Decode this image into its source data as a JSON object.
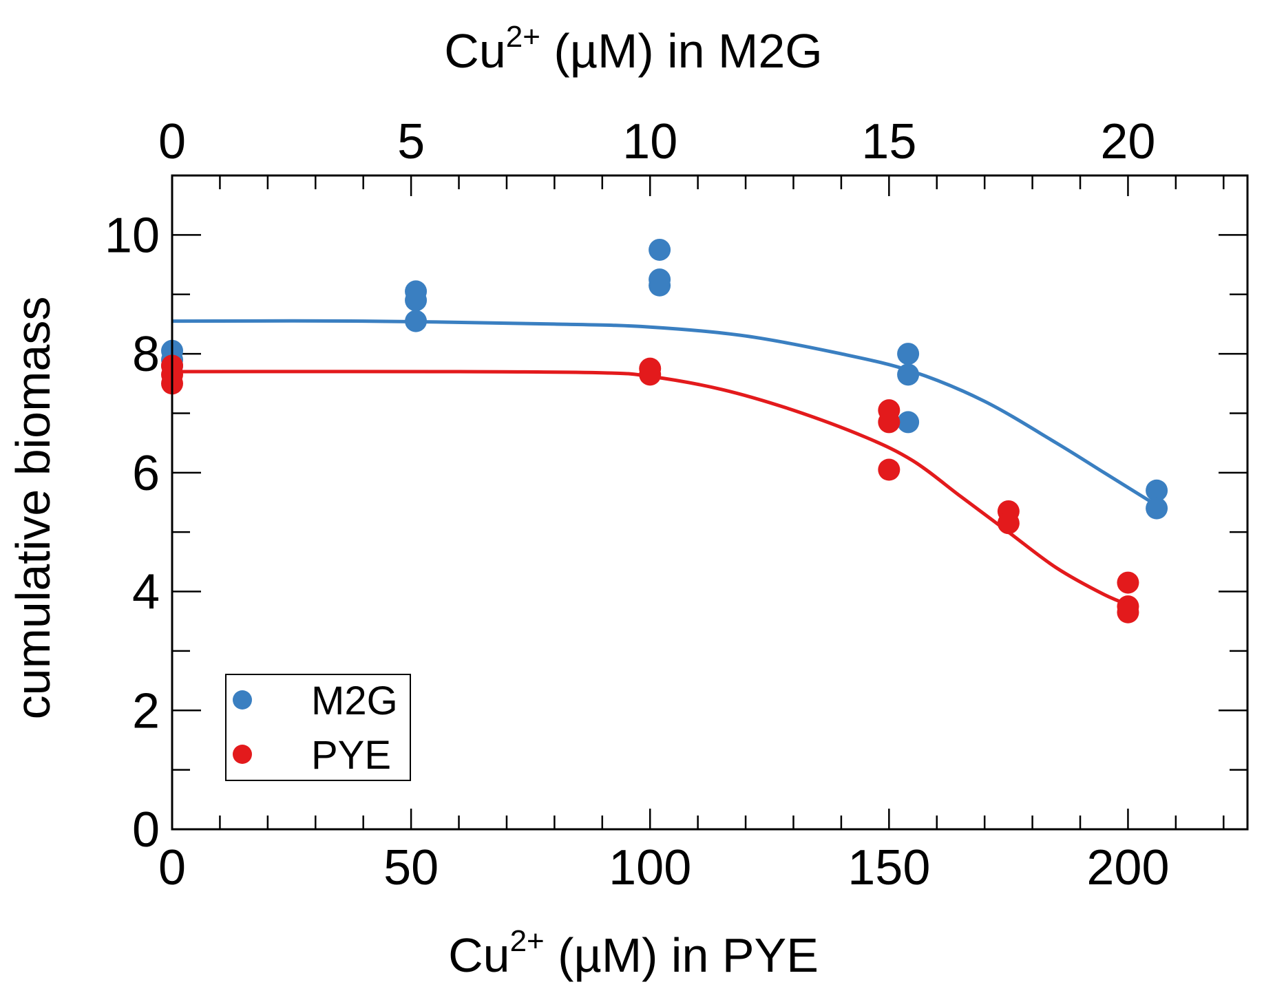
{
  "chart_data": {
    "type": "scatter",
    "x_axis_bottom": {
      "label_base": "Cu",
      "label_sup": "2+",
      "label_rest": " (µM) in PYE",
      "range": [
        0,
        225
      ],
      "major_ticks": [
        0,
        50,
        100,
        150,
        200
      ],
      "minor_step": 10
    },
    "x_axis_top": {
      "label_base": "Cu",
      "label_sup": "2+",
      "label_rest": " (µM) in M2G",
      "range": [
        0,
        22.5
      ],
      "major_ticks": [
        0,
        5,
        10,
        15,
        20
      ],
      "minor_step": 1
    },
    "y_axis": {
      "label": "cumulative biomass",
      "range": [
        0,
        11
      ],
      "major_ticks": [
        0,
        2,
        4,
        6,
        8,
        10
      ],
      "minor_step": 1
    },
    "legend": {
      "placement": "bottom-left",
      "entries": [
        {
          "name": "M2G",
          "color": "#3a7fc1"
        },
        {
          "name": "PYE",
          "color": "#e31a1c"
        }
      ]
    },
    "series": [
      {
        "name": "M2G",
        "color": "#3a7fc1",
        "x_axis": "top",
        "points": [
          [
            0,
            8.05
          ],
          [
            0,
            7.9
          ],
          [
            0,
            7.8
          ],
          [
            5.1,
            9.05
          ],
          [
            5.1,
            8.9
          ],
          [
            5.1,
            8.55
          ],
          [
            10.2,
            9.75
          ],
          [
            10.2,
            9.25
          ],
          [
            10.2,
            9.15
          ],
          [
            15.4,
            8.0
          ],
          [
            15.4,
            7.65
          ],
          [
            15.4,
            6.85
          ],
          [
            20.6,
            5.7
          ],
          [
            20.6,
            5.4
          ]
        ],
        "fit": [
          [
            0,
            8.55
          ],
          [
            4,
            8.55
          ],
          [
            8,
            8.5
          ],
          [
            10,
            8.45
          ],
          [
            12,
            8.3
          ],
          [
            14,
            8.0
          ],
          [
            15.5,
            7.7
          ],
          [
            17,
            7.2
          ],
          [
            18.5,
            6.5
          ],
          [
            19.5,
            6.0
          ],
          [
            20.5,
            5.5
          ]
        ]
      },
      {
        "name": "PYE",
        "color": "#e31a1c",
        "x_axis": "bottom",
        "points": [
          [
            0,
            7.8
          ],
          [
            0,
            7.65
          ],
          [
            0,
            7.5
          ],
          [
            100,
            7.75
          ],
          [
            100,
            7.65
          ],
          [
            150,
            7.05
          ],
          [
            150,
            6.85
          ],
          [
            150,
            6.05
          ],
          [
            175,
            5.35
          ],
          [
            175,
            5.15
          ],
          [
            200,
            4.15
          ],
          [
            200,
            3.75
          ],
          [
            200,
            3.65
          ]
        ],
        "fit": [
          [
            0,
            7.7
          ],
          [
            60,
            7.7
          ],
          [
            90,
            7.68
          ],
          [
            100,
            7.62
          ],
          [
            115,
            7.4
          ],
          [
            130,
            7.05
          ],
          [
            145,
            6.6
          ],
          [
            155,
            6.2
          ],
          [
            165,
            5.6
          ],
          [
            175,
            5.0
          ],
          [
            185,
            4.4
          ],
          [
            195,
            3.95
          ],
          [
            201,
            3.75
          ]
        ]
      }
    ]
  }
}
